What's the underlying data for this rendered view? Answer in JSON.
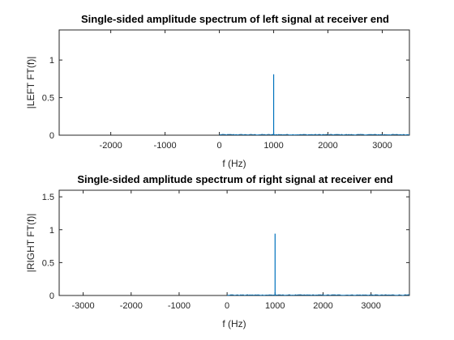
{
  "chart_data": [
    {
      "type": "line",
      "title": "Single-sided amplitude spectrum of left signal at receiver end",
      "xlabel": "f (Hz)",
      "ylabel": "|LEFT FT(f)|",
      "xlim": [
        -2950,
        3500
      ],
      "ylim": [
        0,
        1.4
      ],
      "xticks": [
        -2000,
        -1000,
        0,
        1000,
        2000,
        3000
      ],
      "xtick_labels": [
        "-2000",
        "-1000",
        "0",
        "1000",
        "2000",
        "3000"
      ],
      "yticks": [
        0,
        0.5,
        1
      ],
      "ytick_labels": [
        "0",
        "0.5",
        "1"
      ],
      "grid": false,
      "color": "#0072BD",
      "series": [
        {
          "peak": {
            "x": 1000,
            "y": 0.81
          },
          "noise_floor": {
            "x_start": 0,
            "x_end": 3500,
            "level": 0.01
          }
        }
      ]
    },
    {
      "type": "line",
      "title": "Single-sided amplitude spectrum of right signal at receiver end",
      "xlabel": "f (Hz)",
      "ylabel": "|RIGHT FT(f)|",
      "xlim": [
        -3500,
        3800
      ],
      "ylim": [
        0,
        1.6
      ],
      "xticks": [
        -3000,
        -2000,
        -1000,
        0,
        1000,
        2000,
        3000
      ],
      "xtick_labels": [
        "-3000",
        "-2000",
        "-1000",
        "0",
        "1000",
        "2000",
        "3000"
      ],
      "yticks": [
        0,
        0.5,
        1,
        1.5
      ],
      "ytick_labels": [
        "0",
        "0.5",
        "1",
        "1.5"
      ],
      "grid": false,
      "color": "#0072BD",
      "series": [
        {
          "peak": {
            "x": 1000,
            "y": 0.94
          },
          "noise_floor": {
            "x_start": 0,
            "x_end": 3800,
            "level": 0.01
          }
        }
      ]
    }
  ]
}
